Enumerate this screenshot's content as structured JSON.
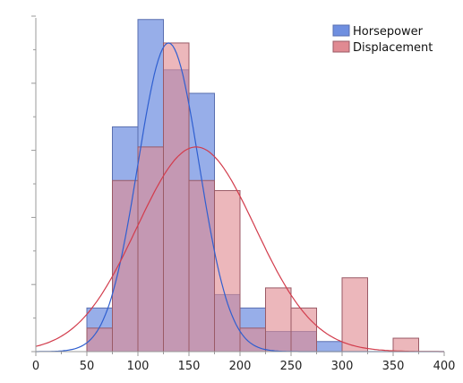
{
  "chart_data": {
    "type": "histogram",
    "title": "",
    "xlabel": "",
    "ylabel": "",
    "xlim": [
      0,
      400
    ],
    "ylim": [
      0,
      100
    ],
    "bin_width": 25,
    "x_ticks": [
      "0",
      "50",
      "100",
      "150",
      "200",
      "250",
      "300",
      "350",
      "400"
    ],
    "legend": {
      "placement": "top-right"
    },
    "grid": false,
    "series": [
      {
        "name": "Horsepower",
        "color": "#6f8fe0",
        "curve_color": "#2f5fd0",
        "bins": [
          {
            "x0": 50,
            "x1": 75,
            "value": 13
          },
          {
            "x0": 75,
            "x1": 100,
            "value": 67
          },
          {
            "x0": 100,
            "x1": 125,
            "value": 99
          },
          {
            "x0": 125,
            "x1": 150,
            "value": 84
          },
          {
            "x0": 150,
            "x1": 175,
            "value": 77
          },
          {
            "x0": 175,
            "x1": 200,
            "value": 17
          },
          {
            "x0": 200,
            "x1": 225,
            "value": 13
          },
          {
            "x0": 225,
            "x1": 250,
            "value": 6
          },
          {
            "x0": 250,
            "x1": 275,
            "value": 6
          },
          {
            "x0": 275,
            "x1": 300,
            "value": 3
          },
          {
            "x0": 300,
            "x1": 325,
            "value": 0
          },
          {
            "x0": 325,
            "x1": 350,
            "value": 0
          },
          {
            "x0": 350,
            "x1": 375,
            "value": 0
          }
        ],
        "fit": {
          "mean": 130,
          "sd": 30,
          "peak": 92
        }
      },
      {
        "name": "Displacement",
        "color": "#e08a92",
        "curve_color": "#d23c4c",
        "bins": [
          {
            "x0": 50,
            "x1": 75,
            "value": 7
          },
          {
            "x0": 75,
            "x1": 100,
            "value": 51
          },
          {
            "x0": 100,
            "x1": 125,
            "value": 61
          },
          {
            "x0": 125,
            "x1": 150,
            "value": 92
          },
          {
            "x0": 150,
            "x1": 175,
            "value": 51
          },
          {
            "x0": 175,
            "x1": 200,
            "value": 48
          },
          {
            "x0": 200,
            "x1": 225,
            "value": 7
          },
          {
            "x0": 225,
            "x1": 250,
            "value": 19
          },
          {
            "x0": 250,
            "x1": 275,
            "value": 13
          },
          {
            "x0": 275,
            "x1": 300,
            "value": 0
          },
          {
            "x0": 300,
            "x1": 325,
            "value": 22
          },
          {
            "x0": 325,
            "x1": 350,
            "value": 0
          },
          {
            "x0": 350,
            "x1": 375,
            "value": 4
          }
        ],
        "fit": {
          "mean": 157,
          "sd": 58,
          "peak": 61
        }
      }
    ]
  }
}
